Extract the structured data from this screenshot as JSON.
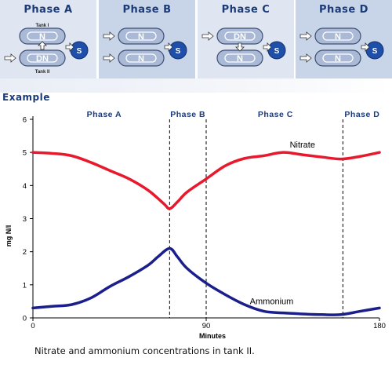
{
  "banner": {
    "phases": [
      {
        "title": "Phase A",
        "tank1_label": "N",
        "tank2_label": "DN",
        "settler_label": "S",
        "tank1_caption": "Tank I",
        "tank2_caption": "Tank II",
        "bg": "#dfe6f1"
      },
      {
        "title": "Phase B",
        "tank1_label": "N",
        "tank2_label": "N",
        "settler_label": "S",
        "bg": "#c8d4e7"
      },
      {
        "title": "Phase C",
        "tank1_label": "DN",
        "tank2_label": "N",
        "settler_label": "S",
        "bg": "#dfe6f1"
      },
      {
        "title": "Phase D",
        "tank1_label": "N",
        "tank2_label": "N",
        "settler_label": "S",
        "bg": "#c8d4e7"
      }
    ]
  },
  "example_heading": "Example",
  "caption": "Nitrate and ammonium concentrations in tank II.",
  "colors": {
    "nitrate": "#e8192c",
    "ammonium": "#1a1f8c",
    "heading": "#1b3a78"
  },
  "chart_data": {
    "type": "line",
    "xlabel": "Minutes",
    "ylabel": "mg N/l",
    "xlim": [
      0,
      180
    ],
    "ylim": [
      0,
      6
    ],
    "xticks": [
      0,
      90,
      180
    ],
    "yticks": [
      0,
      1,
      2,
      3,
      4,
      5,
      6
    ],
    "phase_boundaries": [
      71,
      90,
      161
    ],
    "phase_labels": [
      {
        "label": "Phase A",
        "x_center": 37
      },
      {
        "label": "Phase B",
        "x_center": 80.5
      },
      {
        "label": "Phase C",
        "x_center": 126
      },
      {
        "label": "Phase D",
        "x_center": 171
      }
    ],
    "series": [
      {
        "name": "Nitrate",
        "x": [
          0,
          10,
          20,
          30,
          40,
          50,
          60,
          68,
          71,
          75,
          80,
          90,
          100,
          110,
          120,
          130,
          140,
          150,
          160,
          170,
          180
        ],
        "values": [
          5.0,
          4.97,
          4.9,
          4.7,
          4.45,
          4.2,
          3.85,
          3.45,
          3.3,
          3.5,
          3.8,
          4.2,
          4.6,
          4.82,
          4.9,
          5.0,
          4.93,
          4.86,
          4.8,
          4.88,
          5.0
        ],
        "label_x": 140,
        "label_y": 5.15
      },
      {
        "name": "Ammonium",
        "x": [
          0,
          10,
          20,
          30,
          40,
          50,
          60,
          65,
          71,
          75,
          80,
          90,
          100,
          110,
          120,
          130,
          140,
          150,
          160,
          170,
          180
        ],
        "values": [
          0.3,
          0.35,
          0.4,
          0.6,
          0.95,
          1.25,
          1.6,
          1.85,
          2.1,
          1.85,
          1.5,
          1.05,
          0.7,
          0.4,
          0.2,
          0.15,
          0.12,
          0.1,
          0.1,
          0.2,
          0.3
        ],
        "label_x": 124,
        "label_y": 0.42
      }
    ]
  }
}
